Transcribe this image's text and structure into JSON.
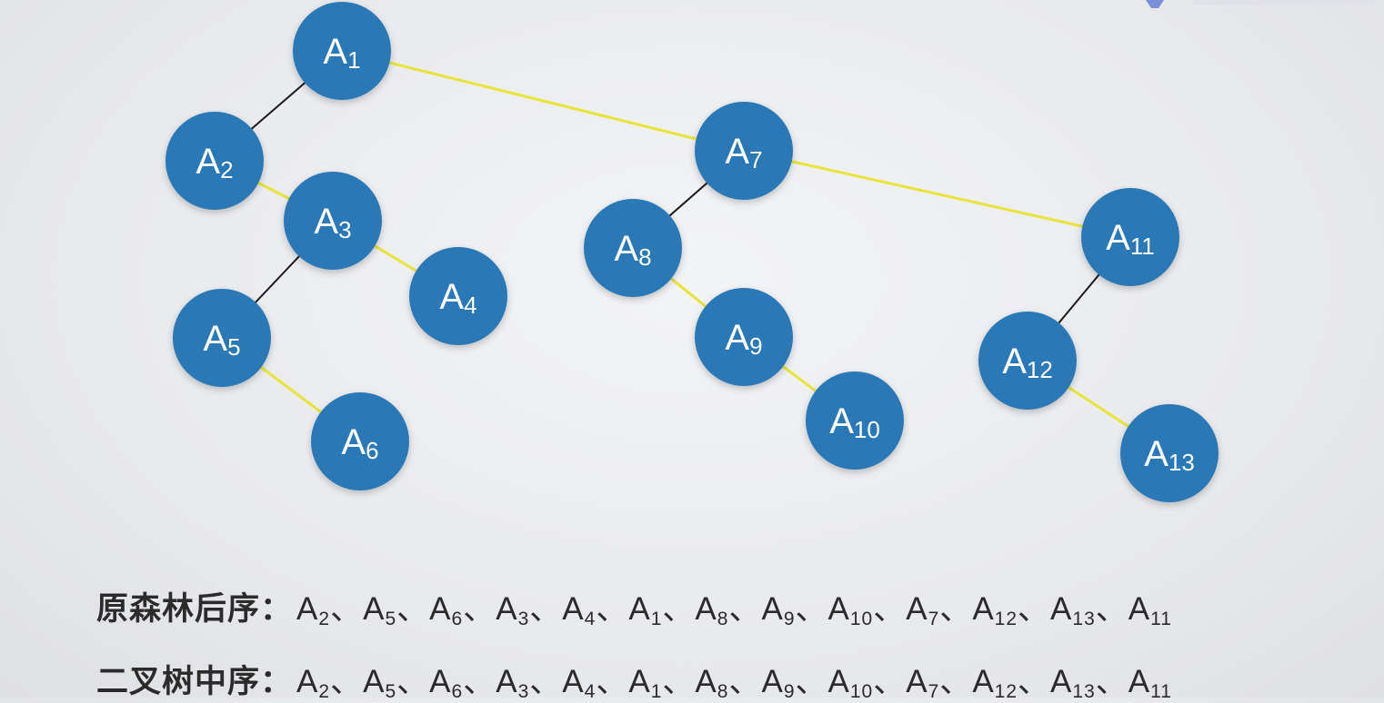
{
  "diagram": {
    "nodes": [
      {
        "id": "A1",
        "base": "A",
        "sub": "1"
      },
      {
        "id": "A2",
        "base": "A",
        "sub": "2"
      },
      {
        "id": "A3",
        "base": "A",
        "sub": "3"
      },
      {
        "id": "A4",
        "base": "A",
        "sub": "4"
      },
      {
        "id": "A5",
        "base": "A",
        "sub": "5"
      },
      {
        "id": "A6",
        "base": "A",
        "sub": "6"
      },
      {
        "id": "A7",
        "base": "A",
        "sub": "7"
      },
      {
        "id": "A8",
        "base": "A",
        "sub": "8"
      },
      {
        "id": "A9",
        "base": "A",
        "sub": "9"
      },
      {
        "id": "A10",
        "base": "A",
        "sub": "10"
      },
      {
        "id": "A11",
        "base": "A",
        "sub": "11"
      },
      {
        "id": "A12",
        "base": "A",
        "sub": "12"
      },
      {
        "id": "A13",
        "base": "A",
        "sub": "13"
      }
    ],
    "edges": [
      {
        "from": "A1",
        "to": "A2",
        "kind": "left-child"
      },
      {
        "from": "A1",
        "to": "A7",
        "kind": "right-sibling"
      },
      {
        "from": "A2",
        "to": "A3",
        "kind": "right-sibling"
      },
      {
        "from": "A3",
        "to": "A5",
        "kind": "left-child"
      },
      {
        "from": "A3",
        "to": "A4",
        "kind": "right-sibling"
      },
      {
        "from": "A5",
        "to": "A6",
        "kind": "right-sibling"
      },
      {
        "from": "A7",
        "to": "A8",
        "kind": "left-child"
      },
      {
        "from": "A7",
        "to": "A11",
        "kind": "right-sibling"
      },
      {
        "from": "A8",
        "to": "A9",
        "kind": "right-sibling"
      },
      {
        "from": "A9",
        "to": "A10",
        "kind": "right-sibling"
      },
      {
        "from": "A11",
        "to": "A12",
        "kind": "left-child"
      },
      {
        "from": "A12",
        "to": "A13",
        "kind": "right-sibling"
      }
    ]
  },
  "sequences": {
    "forest_postorder": {
      "title": "原森林后序：",
      "separator": "、",
      "items": [
        "A2",
        "A5",
        "A6",
        "A3",
        "A4",
        "A1",
        "A8",
        "A9",
        "A10",
        "A7",
        "A12",
        "A13",
        "A11"
      ]
    },
    "binary_inorder": {
      "title": "二叉树中序：",
      "separator": "、",
      "items": [
        "A2",
        "A5",
        "A6",
        "A3",
        "A4",
        "A1",
        "A8",
        "A9",
        "A10",
        "A7",
        "A12",
        "A13",
        "A11"
      ]
    }
  },
  "colors": {
    "node_fill": "#2b78b6",
    "node_label": "#ffffff",
    "child_edge": "#1c1c1c",
    "sibling_edge": "#e8e43a",
    "text": "#2b2b2b"
  }
}
